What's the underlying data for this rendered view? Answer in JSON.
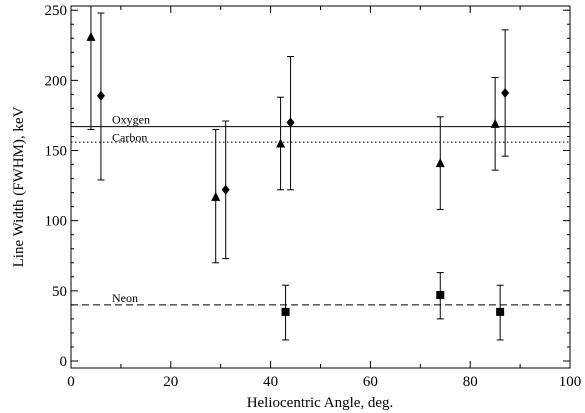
{
  "chart_data": {
    "type": "scatter",
    "xlabel": "Heliocentric Angle, deg.",
    "ylabel": "Line Width (FWHM), keV",
    "xlim": [
      0,
      100
    ],
    "ylim": [
      -5,
      253
    ],
    "x_ticks": [
      0,
      20,
      40,
      60,
      80,
      100
    ],
    "y_ticks": [
      0,
      50,
      100,
      150,
      200,
      250
    ],
    "grid": false,
    "legend": "none",
    "series": [
      {
        "marker": "triangle",
        "points": [
          {
            "x": 4,
            "y": 231,
            "lo": 165,
            "hi": 253
          },
          {
            "x": 29,
            "y": 117,
            "lo": 70,
            "hi": 165
          },
          {
            "x": 42,
            "y": 155,
            "lo": 122,
            "hi": 188
          },
          {
            "x": 74,
            "y": 141,
            "lo": 108,
            "hi": 174
          },
          {
            "x": 85,
            "y": 169,
            "lo": 136,
            "hi": 202
          }
        ]
      },
      {
        "marker": "diamond",
        "points": [
          {
            "x": 6,
            "y": 189,
            "lo": 129,
            "hi": 248
          },
          {
            "x": 31,
            "y": 122,
            "lo": 73,
            "hi": 171
          },
          {
            "x": 44,
            "y": 170,
            "lo": 122,
            "hi": 217
          },
          {
            "x": 87,
            "y": 191,
            "lo": 146,
            "hi": 236
          }
        ]
      },
      {
        "marker": "square",
        "points": [
          {
            "x": 43,
            "y": 35,
            "lo": 15,
            "hi": 54
          },
          {
            "x": 74,
            "y": 47,
            "lo": 30,
            "hi": 63
          },
          {
            "x": 86,
            "y": 35,
            "lo": 15,
            "hi": 54
          }
        ]
      }
    ],
    "reference_lines": [
      {
        "label": "Oxygen",
        "y": 167,
        "style": "solid"
      },
      {
        "label": "Carbon",
        "y": 156,
        "style": "dotted"
      },
      {
        "label": "Neon",
        "y": 40,
        "style": "dashed"
      }
    ]
  }
}
